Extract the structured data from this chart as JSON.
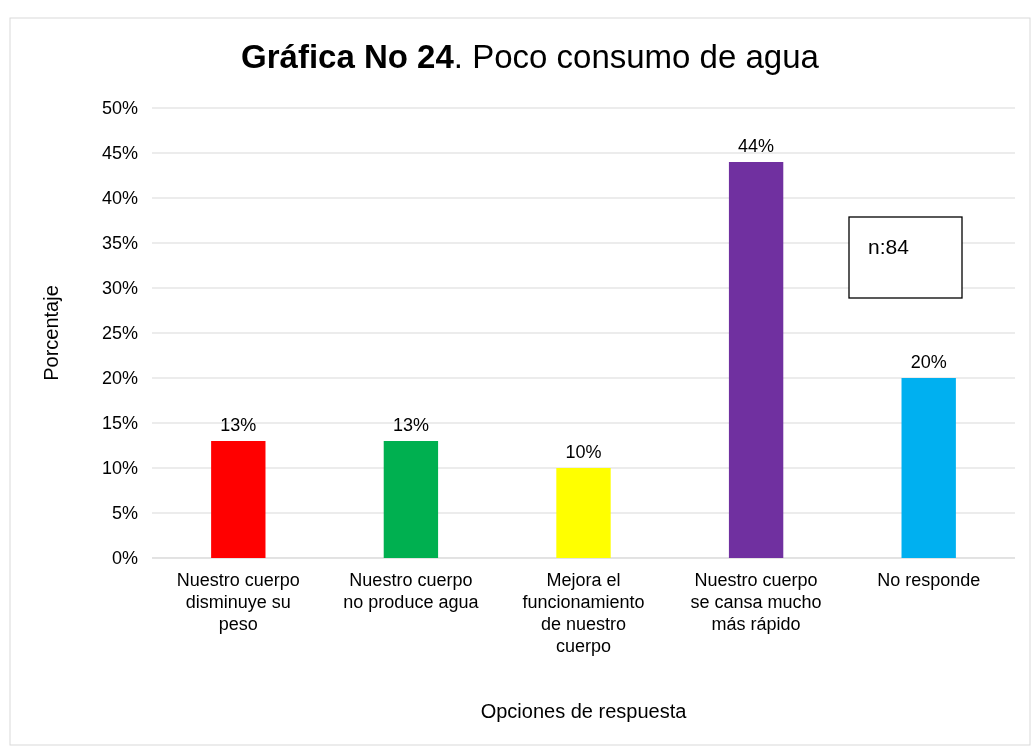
{
  "chart_data": {
    "type": "bar",
    "title": "Gráfica No 24. Poco consumo de agua",
    "xlabel": "Opciones de respuesta",
    "ylabel": "Porcentaje",
    "categories": [
      "Nuestro cuerpo disminuye su peso",
      "Nuestro cuerpo no produce agua",
      "Mejora el funcionamiento de nuestro cuerpo",
      "Nuestro cuerpo se cansa mucho más rápido",
      "No responde"
    ],
    "values": [
      13,
      13,
      10,
      44,
      20
    ],
    "colors": [
      "#ff0000",
      "#00b050",
      "#ffff00",
      "#7030a0",
      "#00b0f0"
    ],
    "value_labels": [
      "13%",
      "13%",
      "10%",
      "44%",
      "20%"
    ],
    "ylim": [
      0,
      50
    ],
    "yticks": [
      {
        "value": 0,
        "label": "0%"
      },
      {
        "value": 5,
        "label": "5%"
      },
      {
        "value": 10,
        "label": "10%"
      },
      {
        "value": 15,
        "label": "15%"
      },
      {
        "value": 20,
        "label": "20%"
      },
      {
        "value": 25,
        "label": "25%"
      },
      {
        "value": 30,
        "label": "30%"
      },
      {
        "value": 35,
        "label": "35%"
      },
      {
        "value": 40,
        "label": "40%"
      },
      {
        "value": 45,
        "label": "45%"
      },
      {
        "value": 50,
        "label": "50%"
      }
    ],
    "grid": "y",
    "annotations": [
      "n:84"
    ]
  }
}
